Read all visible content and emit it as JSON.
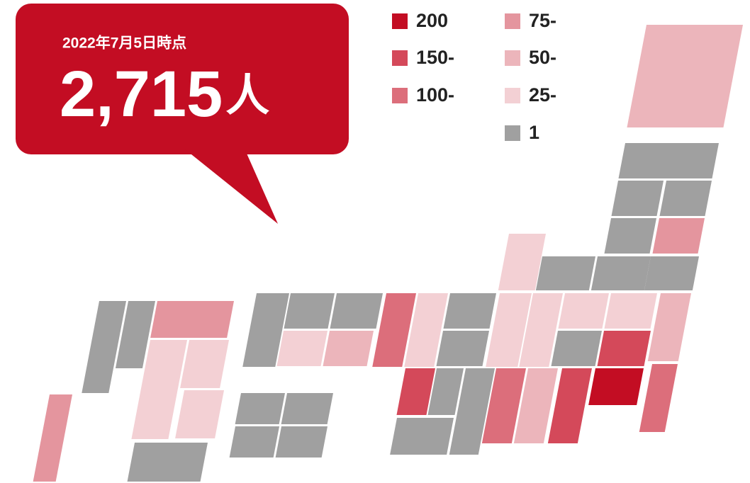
{
  "callout": {
    "date": "2022年7月5日時点",
    "count": "2,715",
    "unit": "人"
  },
  "legend": [
    {
      "label": "200",
      "color": "#c30d23"
    },
    {
      "label": "150-",
      "color": "#d4495a"
    },
    {
      "label": "100-",
      "color": "#dc6e7b"
    },
    {
      "label": "75-",
      "color": "#e4959e"
    },
    {
      "label": "50-",
      "color": "#ecb5bb"
    },
    {
      "label": "25-",
      "color": "#f3d0d4"
    },
    {
      "label": "1",
      "color": "#a0a0a0"
    }
  ]
}
